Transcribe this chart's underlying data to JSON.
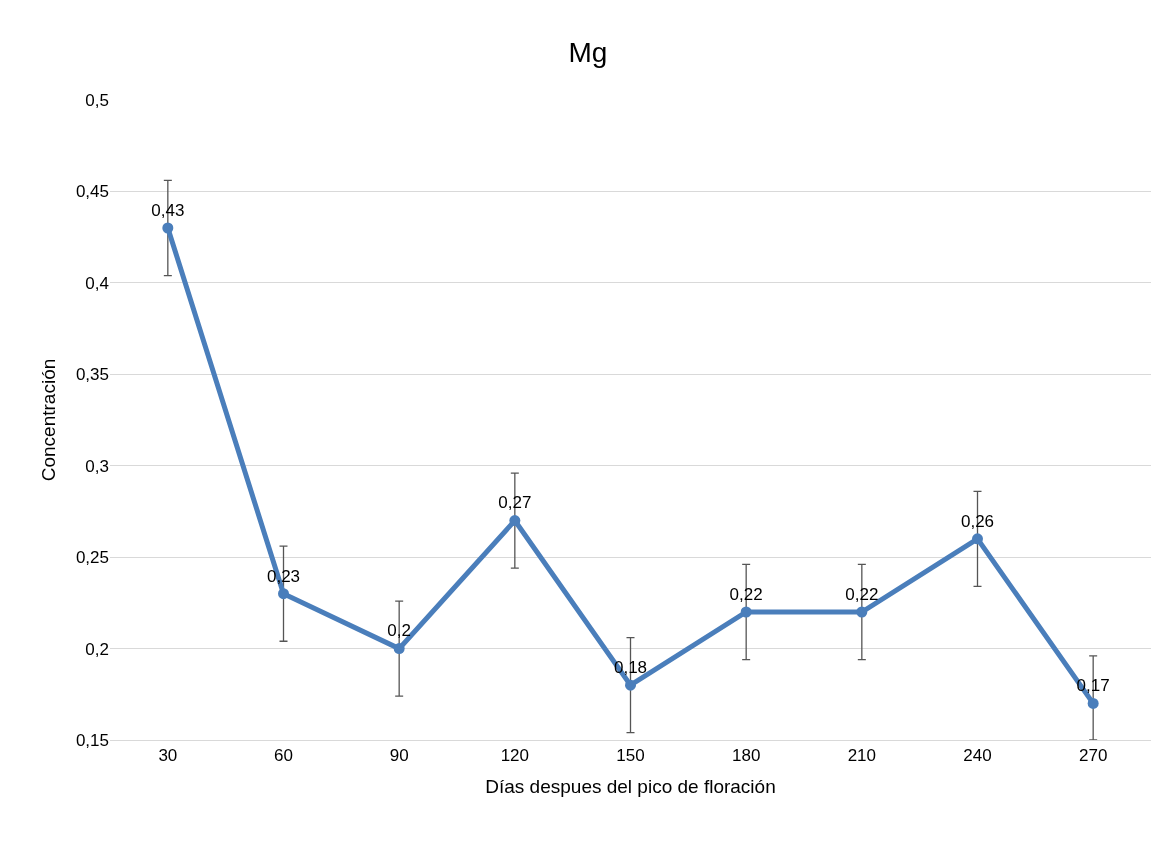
{
  "chart_data": {
    "type": "line",
    "title": "Mg",
    "xlabel": "Días despues del pico de floración",
    "ylabel": "Concentración",
    "categories": [
      "30",
      "60",
      "90",
      "120",
      "150",
      "180",
      "210",
      "240",
      "270"
    ],
    "series": [
      {
        "color": "#4a7ebb",
        "values": [
          0.43,
          0.23,
          0.2,
          0.27,
          0.18,
          0.22,
          0.22,
          0.26,
          0.17
        ],
        "errors": [
          0.026,
          0.026,
          0.026,
          0.026,
          0.026,
          0.026,
          0.026,
          0.026,
          [
            0.15,
            0.196
          ]
        ],
        "value_labels": [
          "0,43",
          "0,23",
          "0,2",
          "0,27",
          "0,18",
          "0,22",
          "0,22",
          "0,26",
          "0,17"
        ]
      }
    ],
    "ylim": [
      0.15,
      0.5
    ],
    "yticks": [
      {
        "value": 0.15,
        "label": "0,15"
      },
      {
        "value": 0.2,
        "label": "0,2"
      },
      {
        "value": 0.25,
        "label": "0,25"
      },
      {
        "value": 0.3,
        "label": "0,3"
      },
      {
        "value": 0.35,
        "label": "0,35"
      },
      {
        "value": 0.4,
        "label": "0,4"
      },
      {
        "value": 0.45,
        "label": "0,45"
      },
      {
        "value": 0.5,
        "label": "0,5"
      }
    ],
    "grid": "y",
    "legend": false,
    "marker": "circle",
    "line_style": "solid"
  }
}
